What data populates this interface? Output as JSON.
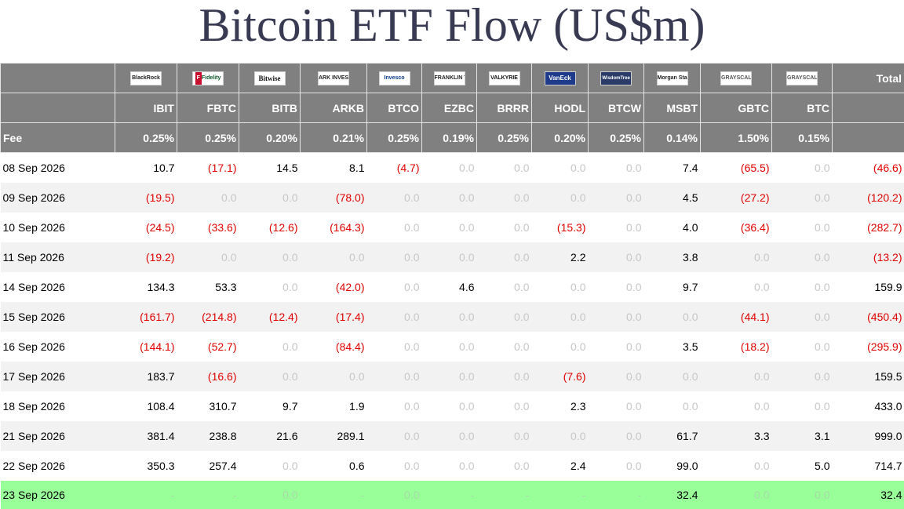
{
  "title": "Bitcoin ETF Flow (US$m)",
  "header": {
    "issuers": [
      {
        "label": "BlackRock",
        "style": "blackrock"
      },
      {
        "label": "Fidelity",
        "style": "fidelity"
      },
      {
        "label": "Bitwise",
        "style": "bitwise"
      },
      {
        "label": "ARK INVEST",
        "style": "ark"
      },
      {
        "label": "Invesco",
        "style": "invesco"
      },
      {
        "label": "FRANKLIN TEMPLETON",
        "style": "franklin"
      },
      {
        "label": "VALKYRIE",
        "style": "valkyrie"
      },
      {
        "label": "VanEck",
        "style": "vaneck"
      },
      {
        "label": "WisdomTree",
        "style": "wisdom"
      },
      {
        "label": "Morgan Stanley",
        "style": "morgan"
      },
      {
        "label": "GRAYSCALE",
        "style": "grayscale"
      },
      {
        "label": "GRAYSCALE",
        "style": "grayscale"
      }
    ],
    "total_label": "Total",
    "tickers": [
      "IBIT",
      "FBTC",
      "BITB",
      "ARKB",
      "BTCO",
      "EZBC",
      "BRRR",
      "HODL",
      "BTCW",
      "MSBT",
      "GBTC",
      "BTC"
    ],
    "fee_label": "Fee",
    "fees": [
      "0.25%",
      "0.25%",
      "0.20%",
      "0.21%",
      "0.25%",
      "0.19%",
      "0.25%",
      "0.20%",
      "0.25%",
      "0.14%",
      "1.50%",
      "0.15%"
    ]
  },
  "rows": [
    {
      "date": "08 Sep 2026",
      "values": [
        "10.7",
        "(17.1)",
        "14.5",
        "8.1",
        "(4.7)",
        "0.0",
        "0.0",
        "0.0",
        "0.0",
        "7.4",
        "(65.5)",
        "0.0"
      ],
      "total": "(46.6)"
    },
    {
      "date": "09 Sep 2026",
      "values": [
        "(19.5)",
        "0.0",
        "0.0",
        "(78.0)",
        "0.0",
        "0.0",
        "0.0",
        "0.0",
        "0.0",
        "4.5",
        "(27.2)",
        "0.0"
      ],
      "total": "(120.2)"
    },
    {
      "date": "10 Sep 2026",
      "values": [
        "(24.5)",
        "(33.6)",
        "(12.6)",
        "(164.3)",
        "0.0",
        "0.0",
        "0.0",
        "(15.3)",
        "0.0",
        "4.0",
        "(36.4)",
        "0.0"
      ],
      "total": "(282.7)"
    },
    {
      "date": "11 Sep 2026",
      "values": [
        "(19.2)",
        "0.0",
        "0.0",
        "0.0",
        "0.0",
        "0.0",
        "0.0",
        "2.2",
        "0.0",
        "3.8",
        "0.0",
        "0.0"
      ],
      "total": "(13.2)"
    },
    {
      "date": "14 Sep 2026",
      "values": [
        "134.3",
        "53.3",
        "0.0",
        "(42.0)",
        "0.0",
        "4.6",
        "0.0",
        "0.0",
        "0.0",
        "9.7",
        "0.0",
        "0.0"
      ],
      "total": "159.9"
    },
    {
      "date": "15 Sep 2026",
      "values": [
        "(161.7)",
        "(214.8)",
        "(12.4)",
        "(17.4)",
        "0.0",
        "0.0",
        "0.0",
        "0.0",
        "0.0",
        "0.0",
        "(44.1)",
        "0.0"
      ],
      "total": "(450.4)"
    },
    {
      "date": "16 Sep 2026",
      "values": [
        "(144.1)",
        "(52.7)",
        "0.0",
        "(84.4)",
        "0.0",
        "0.0",
        "0.0",
        "0.0",
        "0.0",
        "3.5",
        "(18.2)",
        "0.0"
      ],
      "total": "(295.9)"
    },
    {
      "date": "17 Sep 2026",
      "values": [
        "183.7",
        "(16.6)",
        "0.0",
        "0.0",
        "0.0",
        "0.0",
        "0.0",
        "(7.6)",
        "0.0",
        "0.0",
        "0.0",
        "0.0"
      ],
      "total": "159.5"
    },
    {
      "date": "18 Sep 2026",
      "values": [
        "108.4",
        "310.7",
        "9.7",
        "1.9",
        "0.0",
        "0.0",
        "0.0",
        "2.3",
        "0.0",
        "0.0",
        "0.0",
        "0.0"
      ],
      "total": "433.0"
    },
    {
      "date": "21 Sep 2026",
      "values": [
        "381.4",
        "238.8",
        "21.6",
        "289.1",
        "0.0",
        "0.0",
        "0.0",
        "0.0",
        "0.0",
        "61.7",
        "3.3",
        "3.1"
      ],
      "total": "999.0"
    },
    {
      "date": "22 Sep 2026",
      "values": [
        "350.3",
        "257.4",
        "0.0",
        "0.6",
        "0.0",
        "0.0",
        "0.0",
        "2.4",
        "0.0",
        "99.0",
        "0.0",
        "5.0"
      ],
      "total": "714.7"
    },
    {
      "date": "23 Sep 2026",
      "values": [
        "-",
        "-",
        "0.0",
        "-",
        "0.0",
        "-",
        "-",
        "-",
        "-",
        "32.4",
        "0.0",
        "0.0"
      ],
      "total": "32.4"
    }
  ],
  "colors": {
    "header_bg": "#808080",
    "negative": "#e00000",
    "zero": "#c7c7c7",
    "latest_row": "#99ff99"
  }
}
